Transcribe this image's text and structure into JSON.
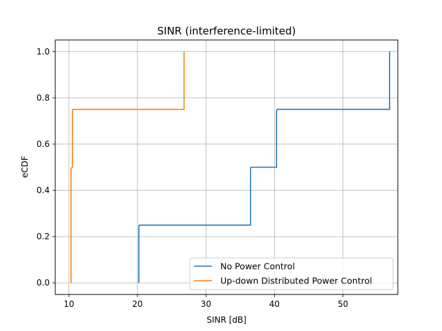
{
  "chart_data": {
    "type": "line",
    "title": "SINR (interference-limited)",
    "xlabel": "SINR [dB]",
    "ylabel": "eCDF",
    "xlim": [
      8.0,
      58.0
    ],
    "ylim": [
      -0.05,
      1.05
    ],
    "xticks": [
      10,
      20,
      30,
      40,
      50
    ],
    "yticks": [
      0.0,
      0.2,
      0.4,
      0.6,
      0.8,
      1.0
    ],
    "xtick_labels": [
      "10",
      "20",
      "30",
      "40",
      "50"
    ],
    "ytick_labels": [
      "0.0",
      "0.2",
      "0.4",
      "0.6",
      "0.8",
      "1.0"
    ],
    "grid": true,
    "legend_position": "lower right",
    "series": [
      {
        "name": "No Power Control",
        "color": "#1f77b4",
        "x": [
          20.2,
          20.2,
          20.3,
          36.5,
          36.5,
          36.6,
          40.3,
          40.3,
          40.4,
          56.8,
          56.8
        ],
        "y": [
          0.0,
          0.245,
          0.25,
          0.25,
          0.495,
          0.5,
          0.5,
          0.745,
          0.75,
          0.75,
          1.0
        ]
      },
      {
        "name": "Up-down Distributed Power Control",
        "color": "#ff7f0e",
        "x": [
          10.3,
          10.3,
          10.3,
          10.3,
          10.5,
          10.5,
          10.6,
          26.8,
          26.8
        ],
        "y": [
          0.0,
          0.25,
          0.25,
          0.495,
          0.5,
          0.745,
          0.75,
          0.75,
          1.0
        ]
      }
    ]
  }
}
